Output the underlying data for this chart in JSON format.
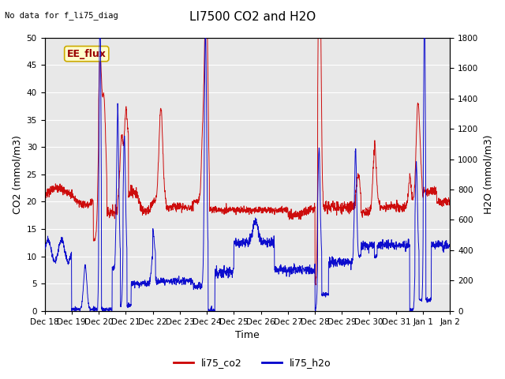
{
  "title": "LI7500 CO2 and H2O",
  "top_left_text": "No data for f_li75_diag",
  "legend_box_text": "EE_flux",
  "xlabel": "Time",
  "ylabel_left": "CO2 (mmol/m3)",
  "ylabel_right": "H2O (mmol/m3)",
  "ylim_left": [
    0,
    50
  ],
  "ylim_right": [
    0,
    1800
  ],
  "yticks_left": [
    0,
    5,
    10,
    15,
    20,
    25,
    30,
    35,
    40,
    45,
    50
  ],
  "yticks_right": [
    0,
    200,
    400,
    600,
    800,
    1000,
    1200,
    1400,
    1600,
    1800
  ],
  "xtick_labels": [
    "Dec 18",
    "Dec 19",
    "Dec 20",
    "Dec 21",
    "Dec 22",
    "Dec 23",
    "Dec 24",
    "Dec 25",
    "Dec 26",
    "Dec 27",
    "Dec 28",
    "Dec 29",
    "Dec 30",
    "Dec 31",
    "Jan 1",
    "Jan 2"
  ],
  "color_co2": "#cc0000",
  "color_h2o": "#0000cc",
  "background_color": "#e8e8e8",
  "legend_label_co2": "li75_co2",
  "legend_label_h2o": "li75_h2o",
  "title_fontsize": 11,
  "axis_fontsize": 9,
  "tick_fontsize": 7.5,
  "legend_fontsize": 9
}
